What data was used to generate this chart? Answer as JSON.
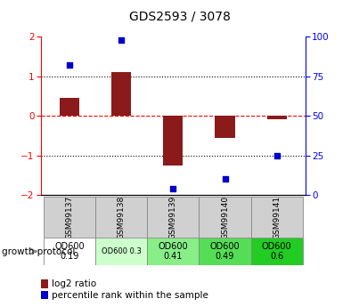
{
  "title": "GDS2593 / 3078",
  "samples": [
    "GSM99137",
    "GSM99138",
    "GSM99139",
    "GSM99140",
    "GSM99141"
  ],
  "log2_ratios": [
    0.45,
    1.1,
    -1.25,
    -0.55,
    -0.08
  ],
  "percentile_ranks": [
    82,
    98,
    4,
    10,
    25
  ],
  "bar_color": "#8B1A1A",
  "dot_color": "#0000CC",
  "ylim_left": [
    -2,
    2
  ],
  "ylim_right": [
    0,
    100
  ],
  "yticks_left": [
    -2,
    -1,
    0,
    1,
    2
  ],
  "yticks_right": [
    0,
    25,
    50,
    75,
    100
  ],
  "protocol_labels": [
    "OD600\n0.19",
    "OD600 0.3",
    "OD600\n0.41",
    "OD600\n0.49",
    "OD600\n0.6"
  ],
  "protocol_colors": [
    "#ffffff",
    "#ccffcc",
    "#88ee88",
    "#55dd55",
    "#22cc22"
  ],
  "protocol_fontsizes": [
    7,
    6,
    7,
    7,
    7
  ],
  "growth_protocol_text": "growth protocol",
  "legend_red_text": "log2 ratio",
  "legend_blue_text": "percentile rank within the sample",
  "sample_bg": "#d0d0d0",
  "title_fontsize": 10
}
